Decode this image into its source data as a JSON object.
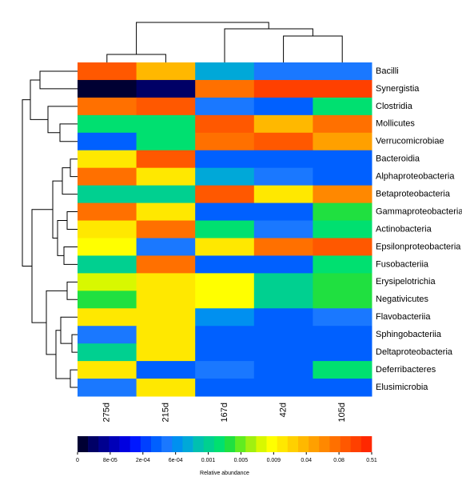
{
  "chart_data": {
    "type": "heatmap",
    "columns": [
      "275d",
      "215d",
      "167d",
      "42d",
      "105d"
    ],
    "rows": [
      "Bacilli",
      "Synergistia",
      "Clostridia",
      "Mollicutes",
      "Verrucomicrobiae",
      "Bacteroidia",
      "Alphaproteobacteria",
      "Betaproteobacteria",
      "Gammaproteobacteria",
      "Actinobacteria",
      "Epsilonproteobacteria",
      "Fusobacteriia",
      "Erysipelotrichia",
      "Negativicutes",
      "Flavobacteriia",
      "Sphingobacteriia",
      "Deltaproteobacteria",
      "Deferribacteres",
      "Elusimicrobia"
    ],
    "values": [
      [
        0.2,
        0.04,
        0.0008,
        0.0005,
        0.0005
      ],
      [
        1e-05,
        4e-05,
        0.09,
        0.25,
        0.3
      ],
      [
        0.08,
        0.12,
        0.0005,
        0.0003,
        0.002
      ],
      [
        0.002,
        0.002,
        0.2,
        0.04,
        0.08
      ],
      [
        0.0004,
        0.002,
        0.08,
        0.15,
        0.05
      ],
      [
        0.02,
        0.1,
        0.0004,
        0.0003,
        0.0003
      ],
      [
        0.08,
        0.02,
        0.0008,
        0.0005,
        0.0004
      ],
      [
        0.0012,
        0.001,
        0.12,
        0.02,
        0.06
      ],
      [
        0.09,
        0.015,
        0.0003,
        0.0003,
        0.004
      ],
      [
        0.015,
        0.08,
        0.002,
        0.0005,
        0.002
      ],
      [
        0.012,
        0.0005,
        0.015,
        0.09,
        0.1
      ],
      [
        0.0015,
        0.09,
        0.0004,
        0.0003,
        0.002
      ],
      [
        0.008,
        0.015,
        0.01,
        0.0015,
        0.004
      ],
      [
        0.004,
        0.015,
        0.012,
        0.0015,
        0.004
      ],
      [
        0.015,
        0.015,
        0.0006,
        0.0003,
        0.0005
      ],
      [
        0.0005,
        0.015,
        0.0003,
        0.0003,
        0.0003
      ],
      [
        0.0015,
        0.015,
        0.0003,
        0.0003,
        0.0004
      ],
      [
        0.015,
        0.0003,
        0.0005,
        0.0003,
        0.002
      ],
      [
        0.0005,
        0.015,
        0.0003,
        0.0003,
        0.0004
      ]
    ],
    "colors": [
      "#000033",
      "#000066",
      "#00008f",
      "#0000b8",
      "#0000e0",
      "#0018ff",
      "#0040ff",
      "#0060ff",
      "#1a78ff",
      "#0090f0",
      "#00a8d8",
      "#00c0b0",
      "#00d090",
      "#00e070",
      "#20e040",
      "#60ec20",
      "#a0f010",
      "#d8f800",
      "#ffff00",
      "#ffe800",
      "#ffd000",
      "#ffb800",
      "#ffa000",
      "#ff8800",
      "#ff7000",
      "#ff5800",
      "#ff4000",
      "#ff2800"
    ],
    "colorbar_ticks": [
      0,
      {
        "value": 8e-05,
        "label": "8e-05"
      },
      {
        "value": 0.0002,
        "label": "2e-04"
      },
      {
        "value": 0.0006,
        "label": "6e-04"
      },
      0.001,
      0.005,
      0.009,
      0.04,
      0.08,
      0.51
    ],
    "colorbar_label": "Relative abundance"
  }
}
